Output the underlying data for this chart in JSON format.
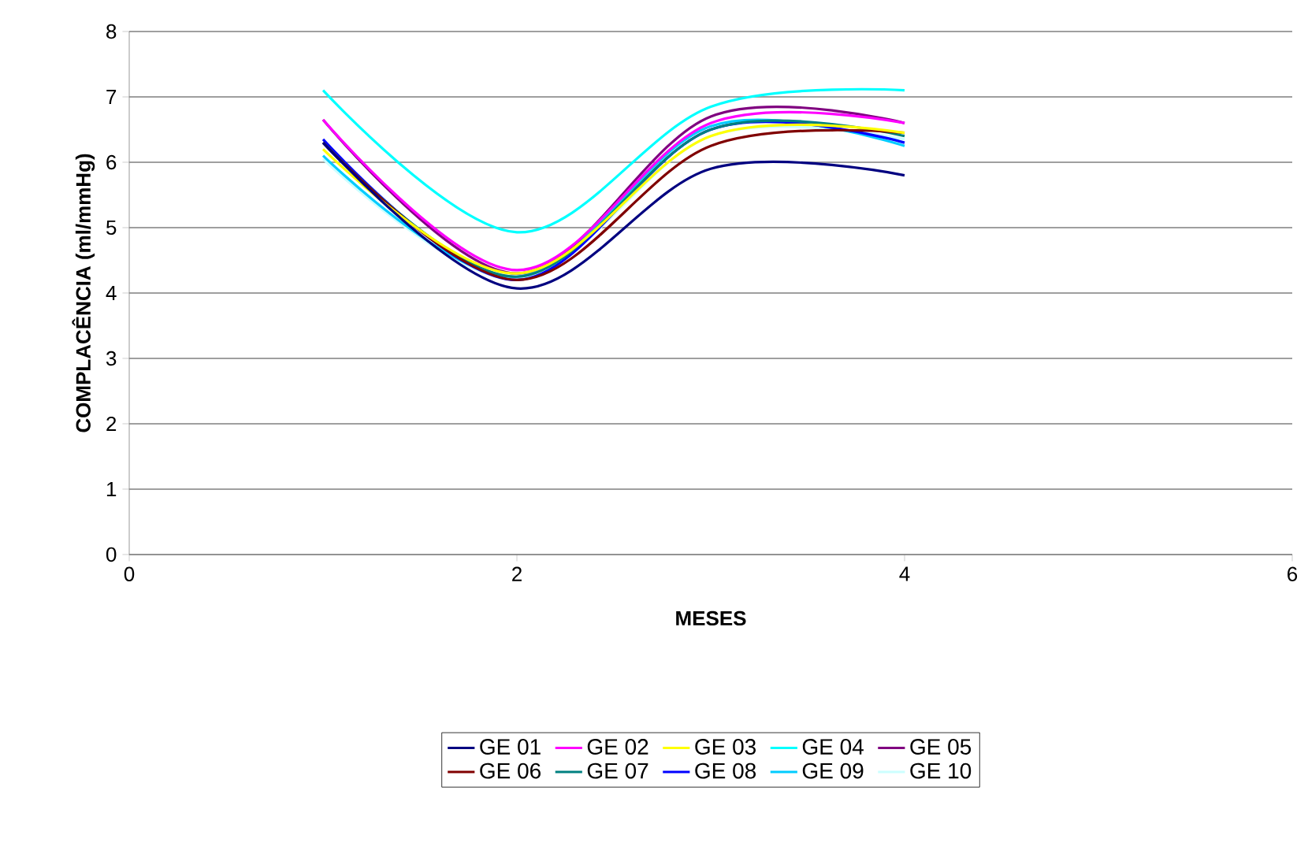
{
  "chart_data": {
    "type": "line",
    "xlabel": "MESES",
    "ylabel": "COMPLACÊNCIA (ml/mmHg)",
    "x": [
      1,
      2,
      3,
      4
    ],
    "xlim": [
      0,
      6
    ],
    "xticks": [
      0,
      2,
      4,
      6
    ],
    "ylim": [
      0,
      8
    ],
    "yticks": [
      0,
      1,
      2,
      3,
      4,
      5,
      6,
      7,
      8
    ],
    "grid": "y",
    "legend": "bottom",
    "series": [
      {
        "name": "GE 01",
        "color": "#000080",
        "values": [
          6.3,
          4.07,
          5.9,
          5.8
        ]
      },
      {
        "name": "GE 02",
        "color": "#ff00ff",
        "values": [
          6.65,
          4.35,
          6.6,
          6.6
        ]
      },
      {
        "name": "GE 03",
        "color": "#ffff00",
        "values": [
          6.2,
          4.3,
          6.4,
          6.45
        ]
      },
      {
        "name": "GE 04",
        "color": "#00ffff",
        "values": [
          7.1,
          4.93,
          6.85,
          7.1
        ]
      },
      {
        "name": "GE 05",
        "color": "#800080",
        "values": [
          6.65,
          4.3,
          6.7,
          6.6
        ]
      },
      {
        "name": "GE 06",
        "color": "#800000",
        "values": [
          6.3,
          4.2,
          6.25,
          6.45
        ]
      },
      {
        "name": "GE 07",
        "color": "#008080",
        "values": [
          6.3,
          4.25,
          6.5,
          6.4
        ]
      },
      {
        "name": "GE 08",
        "color": "#0000ff",
        "values": [
          6.35,
          4.2,
          6.5,
          6.3
        ]
      },
      {
        "name": "GE 09",
        "color": "#00ccff",
        "values": [
          6.1,
          4.25,
          6.55,
          6.25
        ]
      },
      {
        "name": "GE 10",
        "color": "#ccffff",
        "values": [
          6.05,
          4.22,
          6.4,
          6.35
        ]
      }
    ]
  }
}
